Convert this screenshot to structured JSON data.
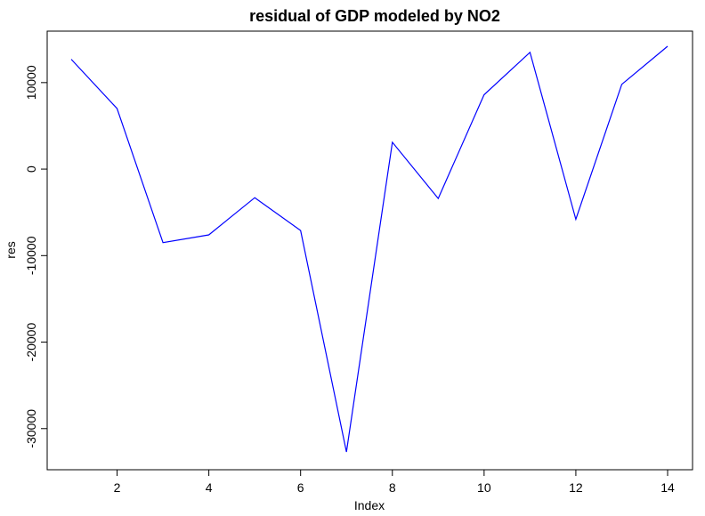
{
  "chart_data": {
    "type": "line",
    "title": "residual of GDP modeled by NO2",
    "xlabel": "Index",
    "ylabel": "res",
    "xlim": [
      1,
      14
    ],
    "ylim": [
      -32800,
      14200
    ],
    "x_ticks": [
      2,
      4,
      6,
      8,
      10,
      12,
      14
    ],
    "y_ticks": [
      -30000,
      -20000,
      -10000,
      0,
      10000
    ],
    "grid": false,
    "series": [
      {
        "color": "#0000ff",
        "x": [
          1,
          2,
          3,
          4,
          5,
          6,
          7,
          8,
          9,
          10,
          11,
          12,
          13,
          14
        ],
        "values": [
          12700,
          7000,
          -8500,
          -7600,
          -3300,
          -7100,
          -32700,
          3100,
          -3400,
          8600,
          13500,
          -5800,
          9800,
          14200
        ]
      }
    ]
  }
}
